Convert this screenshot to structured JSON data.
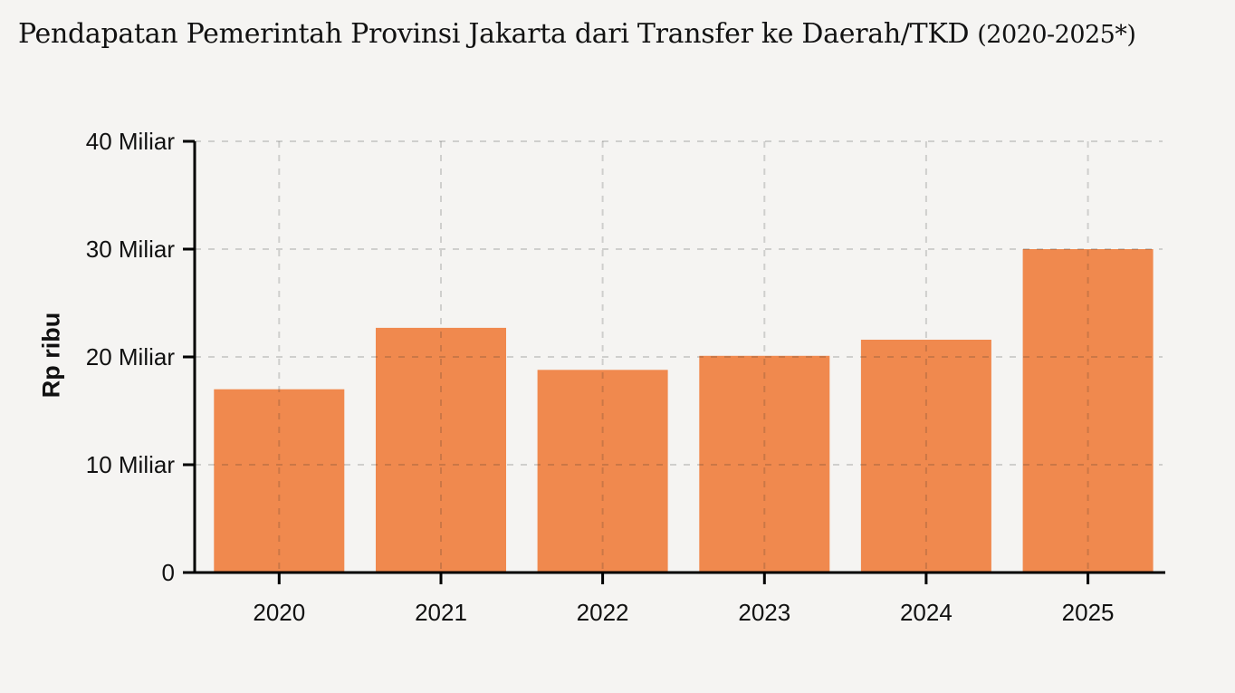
{
  "title": "Pendapatan Pemerintah Provinsi Jakarta dari Transfer ke Daerah/TKD",
  "title_period": "(2020-2025*)",
  "colors": {
    "background": "#f5f4f2",
    "bar": "#f0894e",
    "axis": "#000000",
    "gridline": "rgba(40,40,40,0.18)",
    "text": "#111111"
  },
  "chart_data": {
    "type": "bar",
    "categories": [
      "2020",
      "2021",
      "2022",
      "2023",
      "2024",
      "2025"
    ],
    "values": [
      17.0,
      22.7,
      18.8,
      20.1,
      21.6,
      30.0
    ],
    "title": "Pendapatan Pemerintah Provinsi Jakarta dari Transfer ke Daerah/TKD (2020-2025*)",
    "xlabel": "",
    "ylabel": "Rp ribu",
    "ylim": [
      0,
      40
    ],
    "yticks": [
      {
        "value": 0,
        "label": "0"
      },
      {
        "value": 10,
        "label": "10 Miliar"
      },
      {
        "value": 20,
        "label": "20 Miliar"
      },
      {
        "value": 30,
        "label": "30 Miliar"
      },
      {
        "value": 40,
        "label": "40 Miliar"
      }
    ],
    "grid": true,
    "grid_style": "dashed",
    "legend": false
  }
}
